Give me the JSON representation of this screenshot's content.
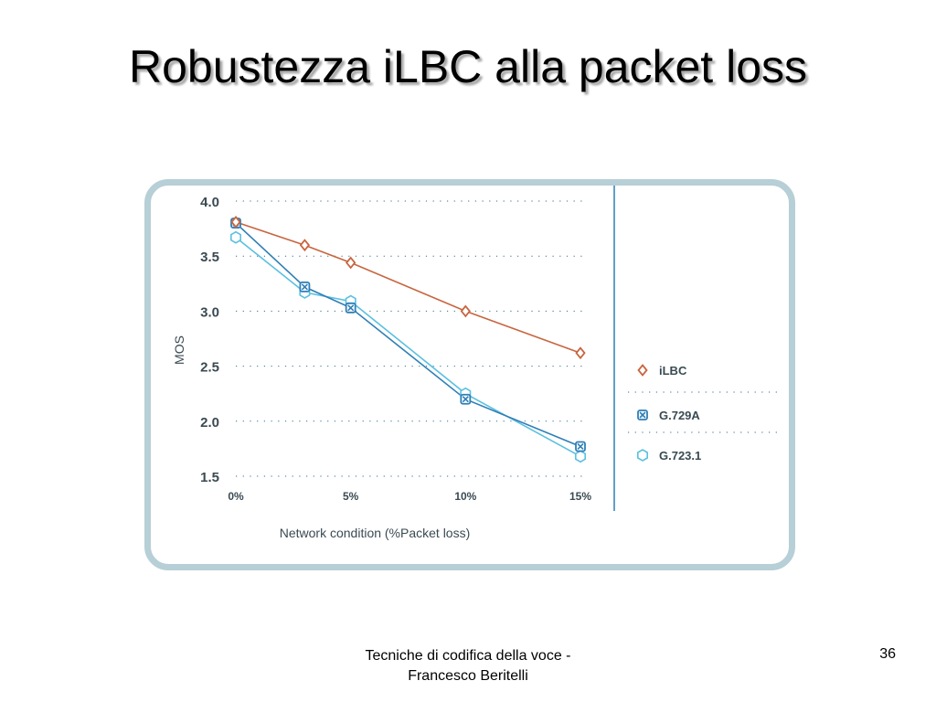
{
  "slide": {
    "title": "Robustezza iLBC alla packet loss",
    "footer_line1": "Tecniche di codifica della voce -",
    "footer_line2": "Francesco Beritelli",
    "page_number": "36"
  },
  "chart_data": {
    "type": "line",
    "title": "",
    "xlabel": "Network condition (%Packet loss)",
    "ylabel": "MOS",
    "x_ticks": [
      {
        "value": 0,
        "label": "0%"
      },
      {
        "value": 5,
        "label": "5%"
      },
      {
        "value": 10,
        "label": "10%"
      },
      {
        "value": 15,
        "label": "15%"
      }
    ],
    "y_ticks": [
      {
        "value": 4.0,
        "label": "4.0"
      },
      {
        "value": 3.5,
        "label": "3.5"
      },
      {
        "value": 3.0,
        "label": "3.0"
      },
      {
        "value": 2.5,
        "label": "2.5"
      },
      {
        "value": 2.0,
        "label": "2.0"
      },
      {
        "value": 1.5,
        "label": "1.5"
      }
    ],
    "xlim": [
      0,
      15
    ],
    "ylim": [
      1.5,
      4.0
    ],
    "grid": "horizontal dotted",
    "legend_position": "right",
    "series": [
      {
        "name": "iLBC",
        "marker": "diamond",
        "color": "#c8653f",
        "x": [
          0,
          3,
          5,
          10,
          15
        ],
        "y": [
          3.81,
          3.6,
          3.44,
          3.0,
          2.62
        ]
      },
      {
        "name": "G.729A",
        "marker": "square-x",
        "color": "#2f7fb6",
        "x": [
          0,
          3,
          5,
          10,
          15
        ],
        "y": [
          3.8,
          3.22,
          3.03,
          2.2,
          1.77
        ]
      },
      {
        "name": "G.723.1",
        "marker": "hexagon",
        "color": "#5bc0e0",
        "x": [
          0,
          3,
          5,
          10,
          15
        ],
        "y": [
          3.67,
          3.17,
          3.09,
          2.25,
          1.68
        ]
      }
    ]
  }
}
